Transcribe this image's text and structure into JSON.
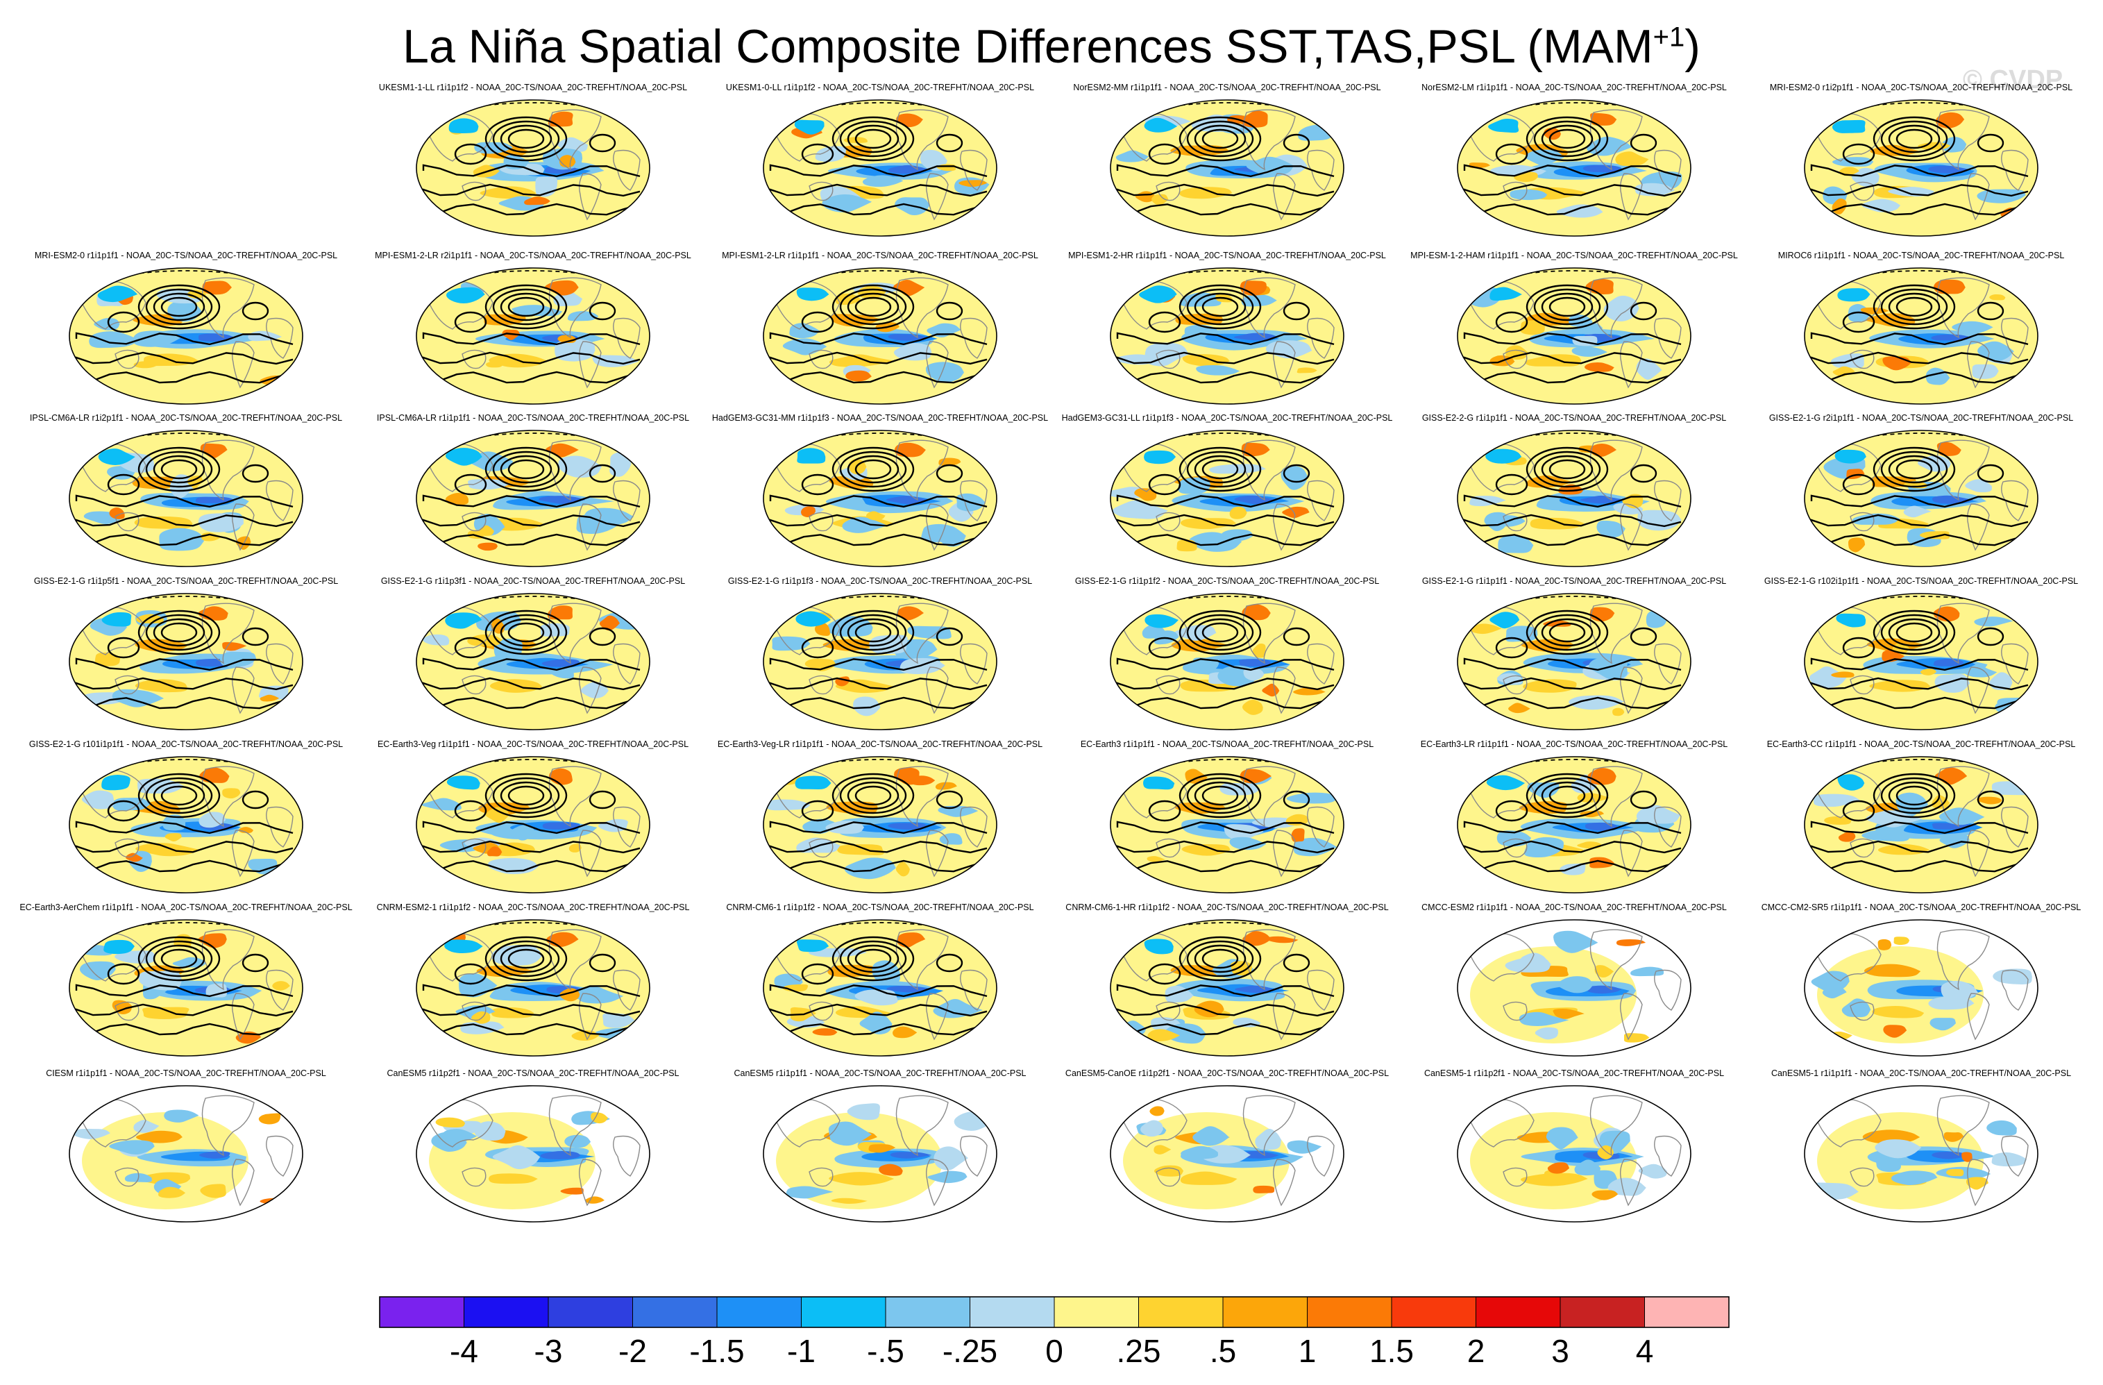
{
  "title_main": "La Niña Spatial Composite Differences SST,TAS,PSL (MAM",
  "title_sup": "+1",
  "title_end": ")",
  "watermark": "© CVDP",
  "chart_data": {
    "type": "heatmap",
    "title": "La Niña Spatial Composite Differences SST,TAS,PSL (MAM+1)",
    "variables": [
      "SST",
      "TAS",
      "PSL"
    ],
    "season": "MAM+1",
    "layout": {
      "rows": 7,
      "cols": 6,
      "first_row_start_col": 1
    },
    "panels": [
      {
        "label": "UKESM1-1-LL r1i1p1f2 - NOAA_20C-TS/NOAA_20C-TREFHT/NOAA_20C-PSL",
        "psl_contours": true
      },
      {
        "label": "UKESM1-0-LL r1i1p1f2 - NOAA_20C-TS/NOAA_20C-TREFHT/NOAA_20C-PSL",
        "psl_contours": true
      },
      {
        "label": "NorESM2-MM r1i1p1f1 - NOAA_20C-TS/NOAA_20C-TREFHT/NOAA_20C-PSL",
        "psl_contours": true
      },
      {
        "label": "NorESM2-LM r1i1p1f1 - NOAA_20C-TS/NOAA_20C-TREFHT/NOAA_20C-PSL",
        "psl_contours": true
      },
      {
        "label": "MRI-ESM2-0 r1i2p1f1 - NOAA_20C-TS/NOAA_20C-TREFHT/NOAA_20C-PSL",
        "psl_contours": true
      },
      {
        "label": "MRI-ESM2-0 r1i1p1f1 - NOAA_20C-TS/NOAA_20C-TREFHT/NOAA_20C-PSL",
        "psl_contours": true
      },
      {
        "label": "MPI-ESM1-2-LR r2i1p1f1 - NOAA_20C-TS/NOAA_20C-TREFHT/NOAA_20C-PSL",
        "psl_contours": true
      },
      {
        "label": "MPI-ESM1-2-LR r1i1p1f1 - NOAA_20C-TS/NOAA_20C-TREFHT/NOAA_20C-PSL",
        "psl_contours": true
      },
      {
        "label": "MPI-ESM1-2-HR r1i1p1f1 - NOAA_20C-TS/NOAA_20C-TREFHT/NOAA_20C-PSL",
        "psl_contours": true
      },
      {
        "label": "MPI-ESM-1-2-HAM r1i1p1f1 - NOAA_20C-TS/NOAA_20C-TREFHT/NOAA_20C-PSL",
        "psl_contours": true
      },
      {
        "label": "MIROC6 r1i1p1f1 - NOAA_20C-TS/NOAA_20C-TREFHT/NOAA_20C-PSL",
        "psl_contours": true
      },
      {
        "label": "IPSL-CM6A-LR r1i2p1f1 - NOAA_20C-TS/NOAA_20C-TREFHT/NOAA_20C-PSL",
        "psl_contours": true
      },
      {
        "label": "IPSL-CM6A-LR r1i1p1f1 - NOAA_20C-TS/NOAA_20C-TREFHT/NOAA_20C-PSL",
        "psl_contours": true
      },
      {
        "label": "HadGEM3-GC31-MM r1i1p1f3 - NOAA_20C-TS/NOAA_20C-TREFHT/NOAA_20C-PSL",
        "psl_contours": true
      },
      {
        "label": "HadGEM3-GC31-LL r1i1p1f3 - NOAA_20C-TS/NOAA_20C-TREFHT/NOAA_20C-PSL",
        "psl_contours": true
      },
      {
        "label": "GISS-E2-2-G r1i1p1f1 - NOAA_20C-TS/NOAA_20C-TREFHT/NOAA_20C-PSL",
        "psl_contours": true
      },
      {
        "label": "GISS-E2-1-G r2i1p1f1 - NOAA_20C-TS/NOAA_20C-TREFHT/NOAA_20C-PSL",
        "psl_contours": true
      },
      {
        "label": "GISS-E2-1-G r1i1p5f1 - NOAA_20C-TS/NOAA_20C-TREFHT/NOAA_20C-PSL",
        "psl_contours": true
      },
      {
        "label": "GISS-E2-1-G r1i1p3f1 - NOAA_20C-TS/NOAA_20C-TREFHT/NOAA_20C-PSL",
        "psl_contours": true
      },
      {
        "label": "GISS-E2-1-G r1i1p1f3 - NOAA_20C-TS/NOAA_20C-TREFHT/NOAA_20C-PSL",
        "psl_contours": true
      },
      {
        "label": "GISS-E2-1-G r1i1p1f2 - NOAA_20C-TS/NOAA_20C-TREFHT/NOAA_20C-PSL",
        "psl_contours": true
      },
      {
        "label": "GISS-E2-1-G r1i1p1f1 - NOAA_20C-TS/NOAA_20C-TREFHT/NOAA_20C-PSL",
        "psl_contours": true
      },
      {
        "label": "GISS-E2-1-G r102i1p1f1 - NOAA_20C-TS/NOAA_20C-TREFHT/NOAA_20C-PSL",
        "psl_contours": true
      },
      {
        "label": "GISS-E2-1-G r101i1p1f1 - NOAA_20C-TS/NOAA_20C-TREFHT/NOAA_20C-PSL",
        "psl_contours": true
      },
      {
        "label": "EC-Earth3-Veg r1i1p1f1 - NOAA_20C-TS/NOAA_20C-TREFHT/NOAA_20C-PSL",
        "psl_contours": true
      },
      {
        "label": "EC-Earth3-Veg-LR r1i1p1f1 - NOAA_20C-TS/NOAA_20C-TREFHT/NOAA_20C-PSL",
        "psl_contours": true
      },
      {
        "label": "EC-Earth3 r1i1p1f1 - NOAA_20C-TS/NOAA_20C-TREFHT/NOAA_20C-PSL",
        "psl_contours": true
      },
      {
        "label": "EC-Earth3-LR r1i1p1f1 - NOAA_20C-TS/NOAA_20C-TREFHT/NOAA_20C-PSL",
        "psl_contours": true
      },
      {
        "label": "EC-Earth3-CC r1i1p1f1 - NOAA_20C-TS/NOAA_20C-TREFHT/NOAA_20C-PSL",
        "psl_contours": true
      },
      {
        "label": "EC-Earth3-AerChem r1i1p1f1 - NOAA_20C-TS/NOAA_20C-TREFHT/NOAA_20C-PSL",
        "psl_contours": true
      },
      {
        "label": "CNRM-ESM2-1 r1i1p1f2 - NOAA_20C-TS/NOAA_20C-TREFHT/NOAA_20C-PSL",
        "psl_contours": true
      },
      {
        "label": "CNRM-CM6-1 r1i1p1f2 - NOAA_20C-TS/NOAA_20C-TREFHT/NOAA_20C-PSL",
        "psl_contours": true
      },
      {
        "label": "CNRM-CM6-1-HR r1i1p1f2 - NOAA_20C-TS/NOAA_20C-TREFHT/NOAA_20C-PSL",
        "psl_contours": true
      },
      {
        "label": "CMCC-ESM2 r1i1p1f1 - NOAA_20C-TS/NOAA_20C-TREFHT/NOAA_20C-PSL",
        "psl_contours": false
      },
      {
        "label": "CMCC-CM2-SR5 r1i1p1f1 - NOAA_20C-TS/NOAA_20C-TREFHT/NOAA_20C-PSL",
        "psl_contours": false
      },
      {
        "label": "CIESM r1i1p1f1 - NOAA_20C-TS/NOAA_20C-TREFHT/NOAA_20C-PSL",
        "psl_contours": false
      },
      {
        "label": "CanESM5 r1i1p2f1 - NOAA_20C-TS/NOAA_20C-TREFHT/NOAA_20C-PSL",
        "psl_contours": false
      },
      {
        "label": "CanESM5 r1i1p1f1 - NOAA_20C-TS/NOAA_20C-TREFHT/NOAA_20C-PSL",
        "psl_contours": false
      },
      {
        "label": "CanESM5-CanOE r1i1p2f1 - NOAA_20C-TS/NOAA_20C-TREFHT/NOAA_20C-PSL",
        "psl_contours": false
      },
      {
        "label": "CanESM5-1 r1i1p2f1 - NOAA_20C-TS/NOAA_20C-TREFHT/NOAA_20C-PSL",
        "psl_contours": false
      },
      {
        "label": "CanESM5-1 r1i1p1f1 - NOAA_20C-TS/NOAA_20C-TREFHT/NOAA_20C-PSL",
        "psl_contours": false
      }
    ],
    "colorbar": {
      "levels": [
        "-4",
        "-3",
        "-2",
        "-1.5",
        "-1",
        "-.5",
        "-.25",
        "0",
        ".25",
        ".5",
        "1",
        "1.5",
        "2",
        "3",
        "4"
      ],
      "colors": [
        "#7a22ee",
        "#1b10f2",
        "#2e3fe0",
        "#3470e4",
        "#1e90f6",
        "#0cbef6",
        "#7cc6ee",
        "#b4daf0",
        "#fef58c",
        "#fed330",
        "#fca60a",
        "#fb7a06",
        "#f83a0c",
        "#e60808",
        "#c82222",
        "#feb4b4"
      ]
    }
  }
}
